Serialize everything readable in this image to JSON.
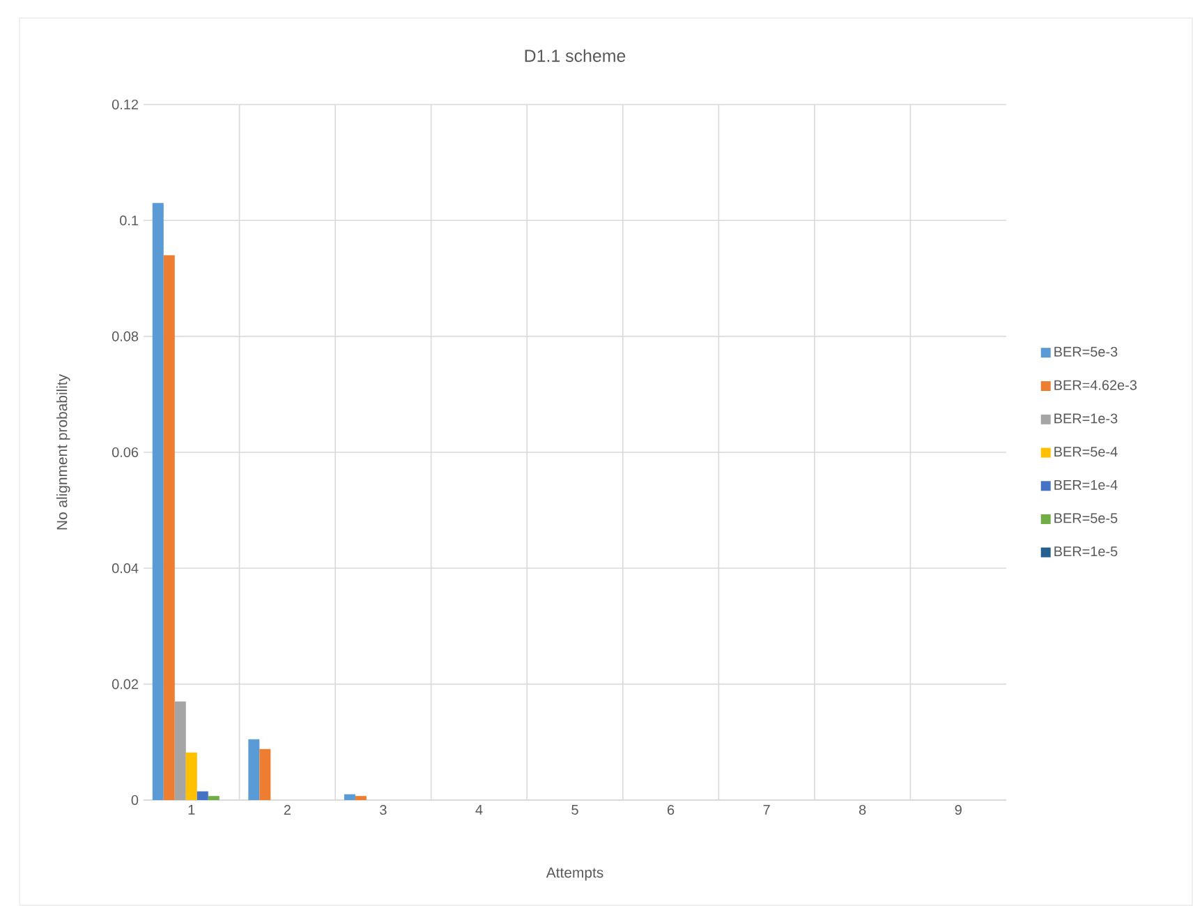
{
  "chart_data": {
    "type": "bar",
    "title": "D1.1 scheme",
    "xlabel": "Attempts",
    "ylabel": "No alignment probability",
    "categories": [
      "1",
      "2",
      "3",
      "4",
      "5",
      "6",
      "7",
      "8",
      "9"
    ],
    "series": [
      {
        "name": "BER=5e-3",
        "color": "#5b9bd5",
        "values": [
          0.103,
          0.0105,
          0.001,
          0,
          0,
          0,
          0,
          0,
          0
        ]
      },
      {
        "name": "BER=4.62e-3",
        "color": "#ed7d31",
        "values": [
          0.094,
          0.0088,
          0.0007,
          0,
          0,
          0,
          0,
          0,
          0
        ]
      },
      {
        "name": "BER=1e-3",
        "color": "#a5a5a5",
        "values": [
          0.017,
          0,
          0,
          0,
          0,
          0,
          0,
          0,
          0
        ]
      },
      {
        "name": "BER=5e-4",
        "color": "#ffc000",
        "values": [
          0.0082,
          0,
          0,
          0,
          0,
          0,
          0,
          0,
          0
        ]
      },
      {
        "name": "BER=1e-4",
        "color": "#4472c4",
        "values": [
          0.0015,
          0,
          0,
          0,
          0,
          0,
          0,
          0,
          0
        ]
      },
      {
        "name": "BER=5e-5",
        "color": "#70ad47",
        "values": [
          0.0007,
          0,
          0,
          0,
          0,
          0,
          0,
          0,
          0
        ]
      },
      {
        "name": "BER=1e-5",
        "color": "#255e91",
        "values": [
          0,
          0,
          0,
          0,
          0,
          0,
          0,
          0,
          0
        ]
      }
    ],
    "ylim": [
      0,
      0.12
    ],
    "yticks": [
      0,
      0.02,
      0.04,
      0.06,
      0.08,
      0.1,
      0.12
    ],
    "grid": true,
    "legend": "right"
  }
}
